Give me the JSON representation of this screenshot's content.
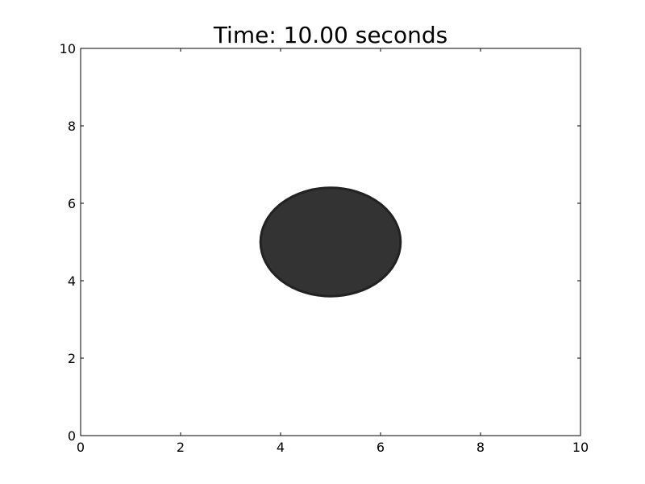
{
  "chart_data": {
    "type": "scatter",
    "title": "Time: 10.00 seconds",
    "xlabel": "",
    "ylabel": "",
    "xlim": [
      0,
      10
    ],
    "ylim": [
      0,
      10
    ],
    "x_ticks": [
      0,
      2,
      4,
      6,
      8,
      10
    ],
    "y_ticks": [
      0,
      2,
      4,
      6,
      8,
      10
    ],
    "grid": false,
    "shapes": [
      {
        "kind": "circle",
        "center": [
          5,
          5
        ],
        "radius": 1.4,
        "fill_color": "#333333",
        "edge_color": "#222222"
      }
    ]
  }
}
